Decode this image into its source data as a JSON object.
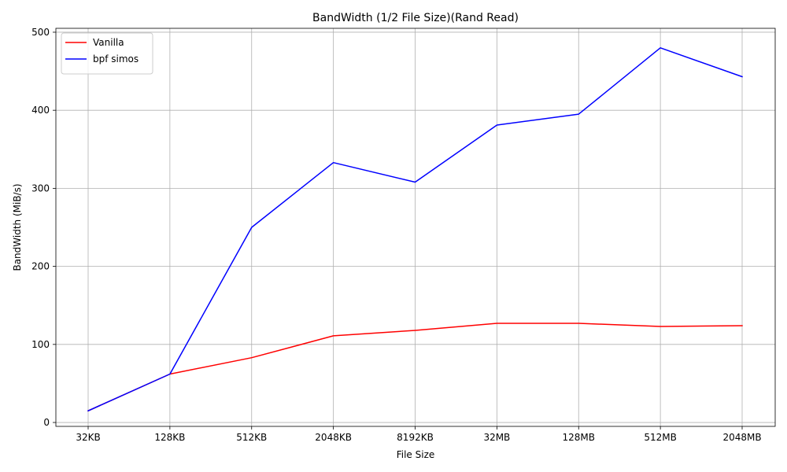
{
  "chart_data": {
    "type": "line",
    "title": "BandWidth (1/2 File Size)(Rand Read)",
    "xlabel": "File Size",
    "ylabel": "BandWidth (MiB/s)",
    "categories": [
      "32KB",
      "128KB",
      "512KB",
      "2048KB",
      "8192KB",
      "32MB",
      "128MB",
      "512MB",
      "2048MB"
    ],
    "ylim": [
      -5,
      505
    ],
    "yticks": [
      0,
      100,
      200,
      300,
      400,
      500
    ],
    "grid": true,
    "legend_position": "top-left",
    "series": [
      {
        "name": "Vanilla",
        "color": "#ff0000",
        "values": [
          15,
          62,
          83,
          111,
          118,
          127,
          127,
          123,
          124
        ]
      },
      {
        "name": "bpf simos",
        "color": "#0000ff",
        "values": [
          15,
          62,
          250,
          333,
          308,
          381,
          395,
          480,
          443
        ]
      }
    ]
  }
}
